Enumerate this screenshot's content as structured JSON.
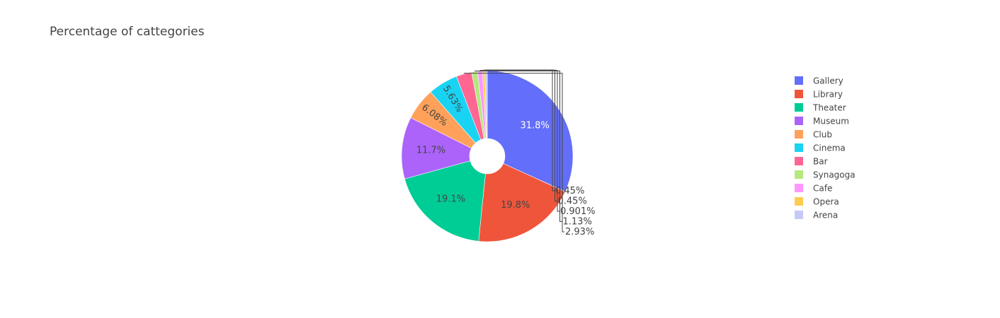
{
  "chart_data": {
    "type": "pie",
    "title": "Percentage of cattegories",
    "hole": true,
    "sort": "descending",
    "direction": "clockwise",
    "legend_position": "right",
    "slices": [
      {
        "label": "Gallery",
        "value": 31.8,
        "value_text": "31.8%",
        "color": "#636efa"
      },
      {
        "label": "Library",
        "value": 19.8,
        "value_text": "19.8%",
        "color": "#EF553B"
      },
      {
        "label": "Theater",
        "value": 19.1,
        "value_text": "19.1%",
        "color": "#00cc96"
      },
      {
        "label": "Museum",
        "value": 11.7,
        "value_text": "11.7%",
        "color": "#ab63fa"
      },
      {
        "label": "Club",
        "value": 6.08,
        "value_text": "6.08%",
        "color": "#FFA15A"
      },
      {
        "label": "Cinema",
        "value": 5.63,
        "value_text": "5.63%",
        "color": "#19d3f3"
      },
      {
        "label": "Bar",
        "value": 2.93,
        "value_text": "2.93%",
        "color": "#FF6692"
      },
      {
        "label": "Synagoga",
        "value": 1.13,
        "value_text": "1.13%",
        "color": "#B6E880"
      },
      {
        "label": "Cafe",
        "value": 0.901,
        "value_text": "0.901%",
        "color": "#FF97FF"
      },
      {
        "label": "Opera",
        "value": 0.45,
        "value_text": "0.45%",
        "color": "#FECB52"
      },
      {
        "label": "Arena",
        "value": 0.45,
        "value_text": "0.45%",
        "color": "#c6c9f7"
      }
    ]
  }
}
